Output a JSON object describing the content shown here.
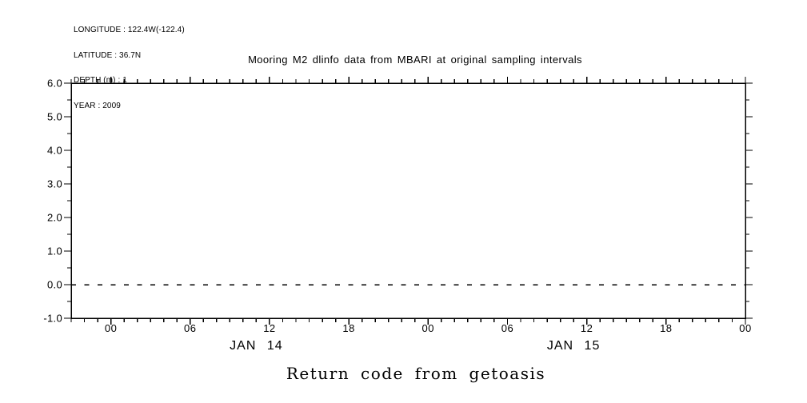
{
  "page": {
    "background": "#ffffff",
    "ink": "#000000"
  },
  "metadata_block": {
    "lines": [
      "LONGITUDE : 122.4W(-122.4)",
      "LATITUDE : 36.7N",
      "DEPTH (m) : 1",
      "YEAR : 2009"
    ]
  },
  "chart_data": {
    "type": "line",
    "title": "Mooring M2 dlinfo data from MBARI at original sampling intervals",
    "caption": "Return code from getoasis",
    "grid": false,
    "legend": false,
    "x_axis": {
      "kind": "time",
      "start_hour": -3,
      "end_hour": 48,
      "minor_step_hours": 1,
      "major_step_hours": 6,
      "major_tick_hours": [
        0,
        6,
        12,
        18,
        24,
        30,
        36,
        42,
        48
      ],
      "major_tick_labels": [
        "00",
        "06",
        "12",
        "18",
        "00",
        "06",
        "12",
        "18",
        "00"
      ],
      "day_labels": [
        {
          "text": "JAN 14",
          "hour": 11
        },
        {
          "text": "JAN 15",
          "hour": 35
        }
      ]
    },
    "y_axis": {
      "min": -1.0,
      "max": 6.0,
      "major_step": 1.0,
      "minor_step": 0.5,
      "major_tick_labels": [
        "-1.0",
        "0.0",
        "1.0",
        "2.0",
        "3.0",
        "4.0",
        "5.0",
        "6.0"
      ]
    },
    "series": [
      {
        "name": "Return code from getoasis",
        "line_style": "dashed",
        "x_hours": [
          -3,
          48
        ],
        "y_values": [
          0,
          0
        ]
      }
    ]
  }
}
